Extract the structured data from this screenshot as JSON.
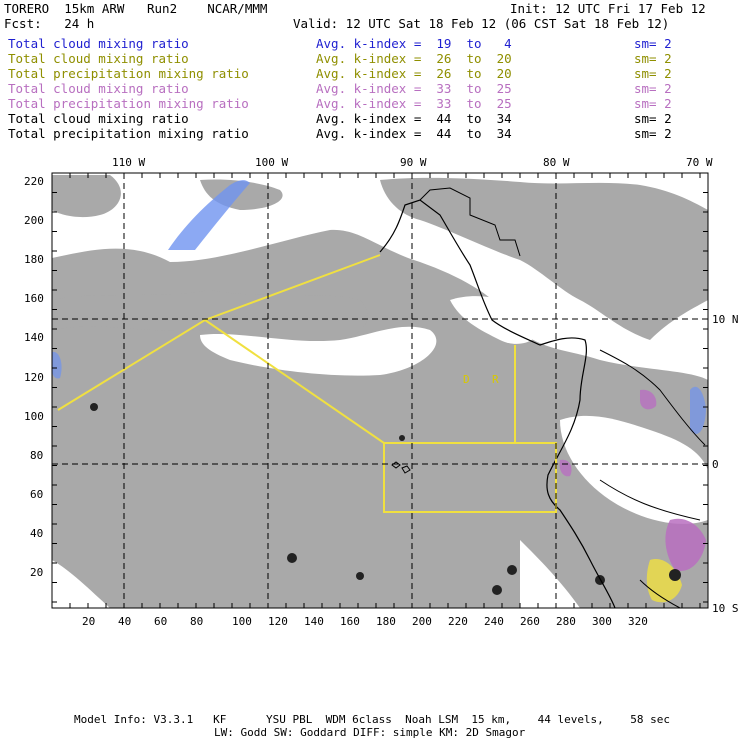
{
  "header": {
    "line1_left": "TORERO  15km ARW   Run2    NCAR/MMM",
    "line1_right": "Init: 12 UTC Fri 17 Feb 12",
    "line2_left": "Fcst:   24 h",
    "line2_right": "Valid: 12 UTC Sat 18 Feb 12 (06 CST Sat 18 Feb 12)"
  },
  "legend": [
    {
      "label": "Total cloud mixing ratio",
      "stat": "Avg. k-index =  19  to   4",
      "sm": "sm= 2",
      "color": "#1f1fd0"
    },
    {
      "label": "Total cloud mixing ratio",
      "stat": "Avg. k-index =  26  to  20",
      "sm": "sm= 2",
      "color": "#8f8f00"
    },
    {
      "label": "Total precipitation mixing ratio",
      "stat": "Avg. k-index =  26  to  20",
      "sm": "sm= 2",
      "color": "#8f8f00"
    },
    {
      "label": "Total cloud mixing ratio",
      "stat": "Avg. k-index =  33  to  25",
      "sm": "sm= 2",
      "color": "#b86fc0"
    },
    {
      "label": "Total precipitation mixing ratio",
      "stat": "Avg. k-index =  33  to  25",
      "sm": "sm= 2",
      "color": "#b86fc0"
    },
    {
      "label": "Total cloud mixing ratio",
      "stat": "Avg. k-index =  44  to  34",
      "sm": "sm= 2",
      "color": "#000000"
    },
    {
      "label": "Total precipitation mixing ratio",
      "stat": "Avg. k-index =  44  to  34",
      "sm": "sm= 2",
      "color": "#000000"
    }
  ],
  "axes": {
    "top_lon": [
      "110 W",
      "100 W",
      "90 W",
      "80 W",
      "70 W"
    ],
    "right_lat": [
      "10 N",
      "0",
      "10 S"
    ],
    "left_y": [
      "220",
      "200",
      "180",
      "160",
      "140",
      "120",
      "100",
      "80",
      "60",
      "40",
      "20"
    ],
    "bottom_x": [
      "20",
      "40",
      "60",
      "80",
      "100",
      "120",
      "140",
      "160",
      "180",
      "200",
      "220",
      "240",
      "260",
      "280",
      "300",
      "320"
    ]
  },
  "map_labels": {
    "box_letters": [
      "D",
      "R"
    ]
  },
  "footer": {
    "line1": "Model Info: V3.3.1   KF      YSU PBL  WDM 6class  Noah LSM  15 km,    44 levels,    58 sec",
    "line2": "LW: Godd SW: Goddard DIFF: simple KM: 2D Smagor"
  },
  "colors": {
    "cloud_gray": "#a9a9a9",
    "flight_track": "#f0e040",
    "cloud_blue": "#3b6fe0",
    "cloud_purple": "#b86fc0",
    "coastline": "#000000"
  }
}
